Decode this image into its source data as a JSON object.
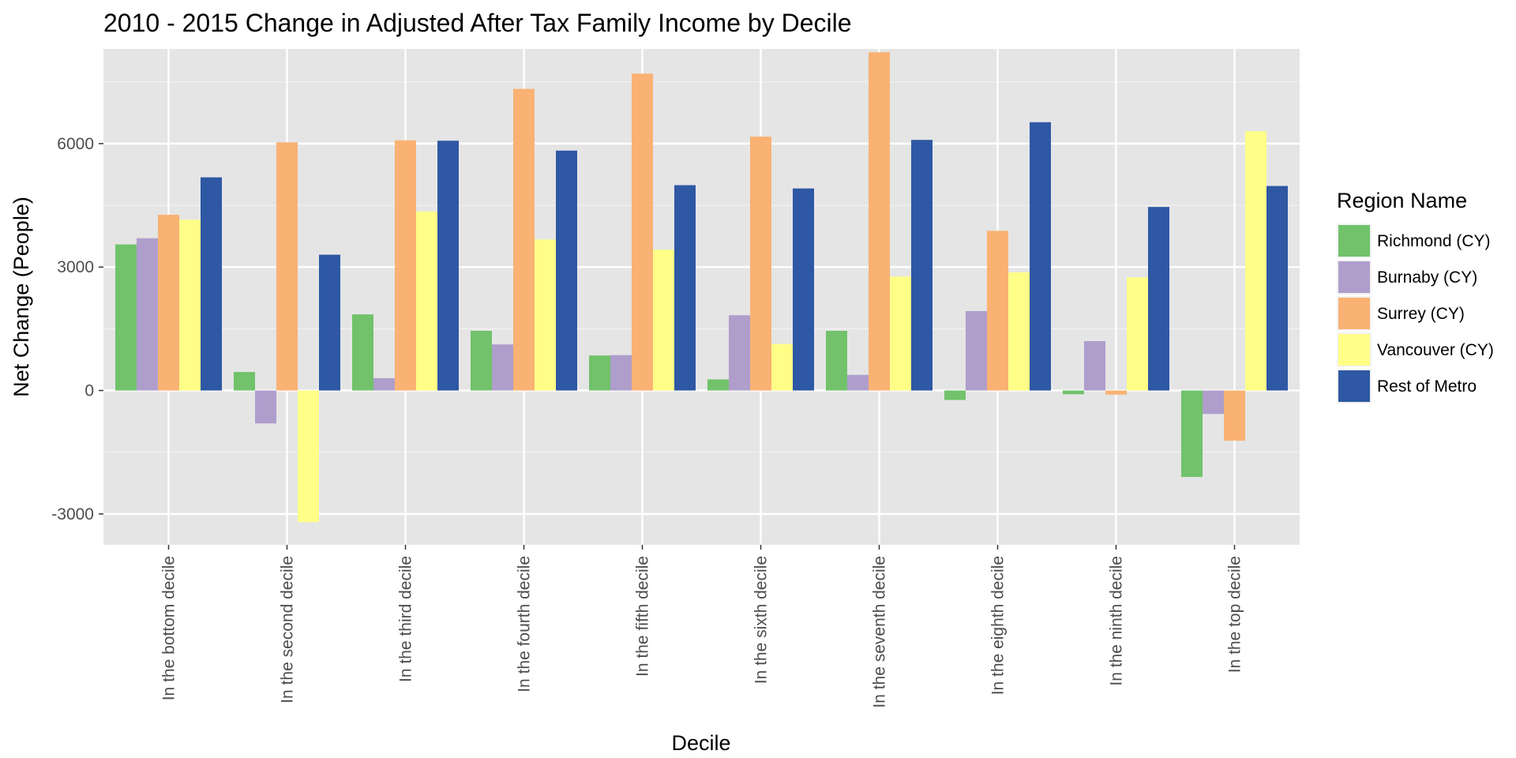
{
  "chart_data": {
    "type": "bar",
    "title": "2010 - 2015 Change in Adjusted After Tax Family Income by Decile",
    "xlabel": "Decile",
    "ylabel": "Net Change (People)",
    "ylim": [
      -3750,
      8300
    ],
    "yticks": [
      -3000,
      0,
      3000,
      6000
    ],
    "grid": true,
    "legend_title": "Region Name",
    "legend_position": "right",
    "categories": [
      "In the bottom decile",
      "In the second decile",
      "In the third decile",
      "In the fourth decile",
      "In the fifth decile",
      "In the sixth decile",
      "In the seventh decile",
      "In the eighth decile",
      "In the ninth decile",
      "In the top decile"
    ],
    "series": [
      {
        "name": "Richmond (CY)",
        "color": "#71C26B",
        "values": [
          3550,
          450,
          1850,
          1450,
          850,
          270,
          1450,
          -230,
          -90,
          -2100
        ]
      },
      {
        "name": "Burnaby (CY)",
        "color": "#AF9ECC",
        "values": [
          3700,
          -800,
          300,
          1120,
          860,
          1830,
          380,
          1930,
          1200,
          -570
        ]
      },
      {
        "name": "Surrey (CY)",
        "color": "#F9B273",
        "values": [
          4270,
          6030,
          6080,
          7330,
          7700,
          6170,
          8220,
          3880,
          -100,
          -1220
        ]
      },
      {
        "name": "Vancouver (CY)",
        "color": "#FFFF88",
        "values": [
          4150,
          -3200,
          4350,
          3670,
          3420,
          1130,
          2770,
          2870,
          2750,
          6300
        ]
      },
      {
        "name": "Rest of Metro",
        "color": "#2E58A4",
        "values": [
          5180,
          3300,
          6070,
          5830,
          4990,
          4910,
          6090,
          6520,
          4460,
          4970
        ]
      }
    ]
  }
}
